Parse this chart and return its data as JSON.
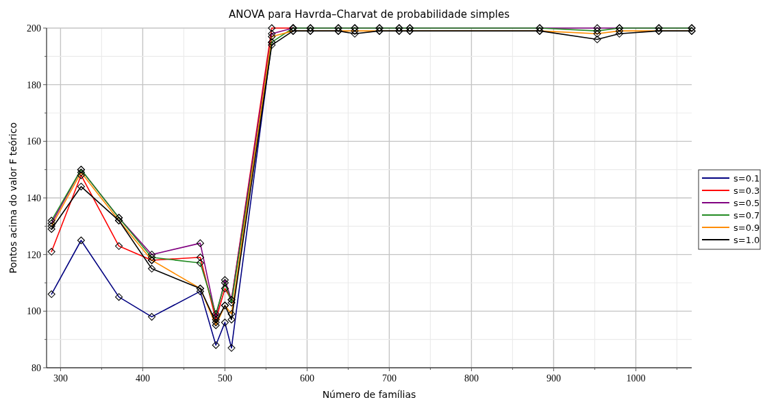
{
  "chart_data": {
    "type": "line",
    "title": "ANOVA para Havrda–Charvat de probabilidade simples",
    "xlabel": "Número de famílias",
    "ylabel": "Pontos acima do valor F teórico",
    "x": [
      289,
      325,
      371,
      411,
      470,
      489,
      500,
      508,
      557,
      583,
      604,
      638,
      658,
      688,
      712,
      725,
      883,
      953,
      980,
      1028,
      1068
    ],
    "xlim": [
      283,
      1068
    ],
    "xticks": [
      300,
      {
        "value": 350,
        "label": null
      },
      400,
      {
        "value": 450,
        "label": null
      },
      500,
      {
        "value": 550,
        "label": null
      },
      600,
      {
        "value": 650,
        "label": null
      },
      700,
      {
        "value": 750,
        "label": null
      },
      800,
      {
        "value": 850,
        "label": null
      },
      900,
      {
        "value": 950,
        "label": null
      },
      1000,
      {
        "value": 1050,
        "label": null
      }
    ],
    "ylim": [
      80,
      200
    ],
    "yticks": [
      80,
      {
        "value": 90,
        "label": null
      },
      100,
      {
        "value": 110,
        "label": null
      },
      120,
      {
        "value": 130,
        "label": null
      },
      140,
      {
        "value": 150,
        "label": null
      },
      160,
      {
        "value": 170,
        "label": null
      },
      180,
      {
        "value": 190,
        "label": null
      },
      200
    ],
    "grid": true,
    "legend": "right",
    "marker": "diamond",
    "line_style": "solid",
    "series": [
      {
        "name": "s=0.1",
        "color": "#000080",
        "values": [
          106,
          125,
          105,
          98,
          107,
          88,
          96,
          87,
          195,
          null,
          null,
          null,
          null,
          null,
          null,
          null,
          null,
          null,
          null,
          null,
          null
        ]
      },
      {
        "name": "s=0.3",
        "color": "#ff0000",
        "values": [
          121,
          148,
          123,
          118,
          119,
          97,
          108,
          104,
          200,
          200,
          null,
          null,
          null,
          null,
          null,
          null,
          null,
          null,
          null,
          null,
          null
        ]
      },
      {
        "name": "s=0.5",
        "color": "#800080",
        "values": [
          131,
          150,
          133,
          120,
          124,
          98,
          111,
          104,
          198,
          200,
          200,
          200,
          200,
          200,
          200,
          200,
          200,
          200,
          200,
          200,
          200
        ]
      },
      {
        "name": "s=0.7",
        "color": "#228b22",
        "values": [
          132,
          150,
          133,
          119,
          117,
          99,
          110,
          103,
          195,
          200,
          200,
          200,
          200,
          200,
          200,
          200,
          200,
          199,
          200,
          200,
          200
        ]
      },
      {
        "name": "s=0.9",
        "color": "#ff8c00",
        "values": [
          130,
          149,
          132,
          118,
          108,
          95,
          102,
          99,
          197,
          199,
          199,
          199,
          199,
          199,
          199,
          199,
          199,
          198,
          199,
          199,
          199
        ]
      },
      {
        "name": "s=1.0",
        "color": "#000000",
        "values": [
          129,
          144,
          132,
          115,
          108,
          96,
          102,
          97,
          194,
          199,
          199,
          199,
          198,
          199,
          199,
          199,
          199,
          196,
          198,
          199,
          199
        ]
      }
    ]
  }
}
